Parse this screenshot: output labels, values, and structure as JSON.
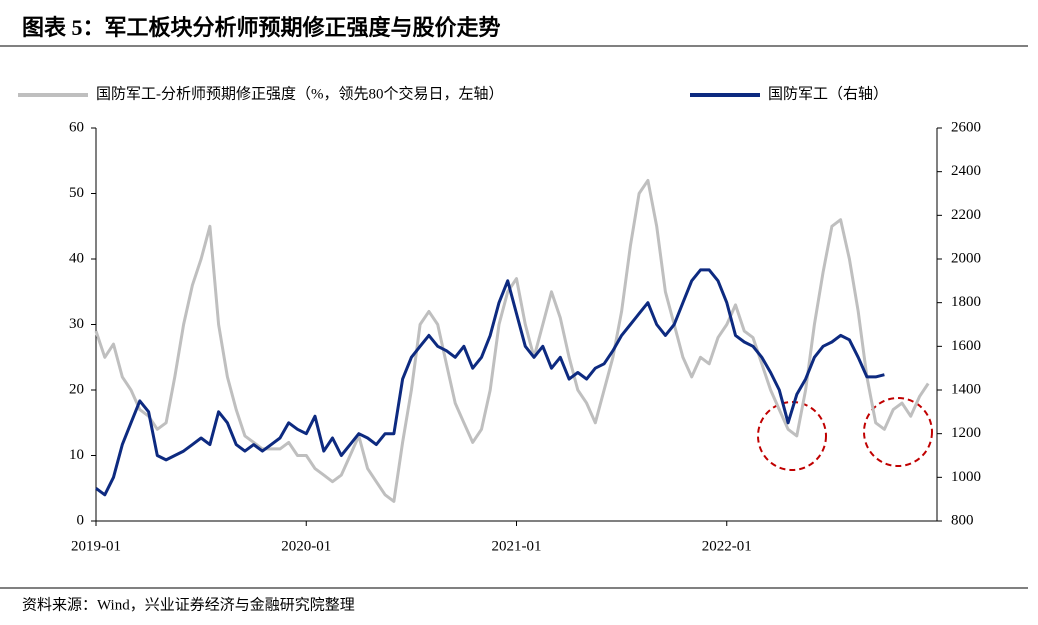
{
  "title": "图表 5：军工板块分析师预期修正强度与股价走势",
  "source": "资料来源：Wind，兴业证券经济与金融研究院整理",
  "chart_data": {
    "type": "line",
    "categories": [
      "2019-01",
      null,
      null,
      null,
      null,
      null,
      null,
      null,
      null,
      null,
      null,
      null,
      null,
      null,
      null,
      null,
      null,
      null,
      null,
      null,
      null,
      null,
      null,
      null,
      "2020-01",
      null,
      null,
      null,
      null,
      null,
      null,
      null,
      null,
      null,
      null,
      null,
      null,
      null,
      null,
      null,
      null,
      null,
      null,
      null,
      null,
      null,
      null,
      null,
      "2021-01",
      null,
      null,
      null,
      null,
      null,
      null,
      null,
      null,
      null,
      null,
      null,
      null,
      null,
      null,
      null,
      null,
      null,
      null,
      null,
      null,
      null,
      null,
      null,
      "2022-01",
      null,
      null,
      null,
      null,
      null,
      null,
      null,
      null,
      null,
      null,
      null,
      null,
      null,
      null,
      null,
      null,
      null,
      null,
      null,
      null,
      null,
      null,
      null
    ],
    "series": [
      {
        "name": "国防军工-分析师预期修正强度（%，领先80个交易日，左轴）",
        "color": "#bfbfbf",
        "axis": "y",
        "values": [
          29,
          25,
          27,
          22,
          20,
          17,
          16,
          14,
          15,
          22,
          30,
          36,
          40,
          45,
          30,
          22,
          17,
          13,
          12,
          11,
          11,
          11,
          12,
          10,
          10,
          8,
          7,
          6,
          7,
          10,
          13,
          8,
          6,
          4,
          3,
          12,
          20,
          30,
          32,
          30,
          24,
          18,
          15,
          12,
          14,
          20,
          30,
          35,
          37,
          30,
          25,
          30,
          35,
          31,
          25,
          20,
          18,
          15,
          20,
          25,
          32,
          42,
          50,
          52,
          45,
          35,
          30,
          25,
          22,
          25,
          24,
          28,
          30,
          33,
          29,
          28,
          24,
          20,
          17,
          14,
          13,
          20,
          30,
          38,
          45,
          46,
          40,
          32,
          22,
          15,
          14,
          17,
          18,
          16,
          19,
          21
        ]
      },
      {
        "name": "国防军工（右轴）",
        "color": "#0d2a80",
        "axis": "y2",
        "values": [
          950,
          920,
          1000,
          1150,
          1250,
          1350,
          1300,
          1100,
          1080,
          1100,
          1120,
          1150,
          1180,
          1150,
          1300,
          1250,
          1150,
          1120,
          1150,
          1120,
          1150,
          1180,
          1250,
          1220,
          1200,
          1280,
          1120,
          1180,
          1100,
          1150,
          1200,
          1180,
          1150,
          1200,
          1200,
          1450,
          1550,
          1600,
          1650,
          1600,
          1580,
          1550,
          1600,
          1500,
          1550,
          1650,
          1800,
          1900,
          1750,
          1600,
          1550,
          1600,
          1500,
          1550,
          1450,
          1480,
          1450,
          1500,
          1520,
          1580,
          1650,
          1700,
          1750,
          1800,
          1700,
          1650,
          1700,
          1800,
          1900,
          1950,
          1950,
          1900,
          1800,
          1650,
          1620,
          1600,
          1550,
          1480,
          1400,
          1250,
          1380,
          1450,
          1550,
          1600,
          1620,
          1650,
          1630,
          1550,
          1460,
          1460,
          1470,
          null,
          null,
          null,
          null,
          null
        ]
      }
    ],
    "ylim": [
      0,
      60
    ],
    "yticks": [
      0,
      10,
      20,
      30,
      40,
      50,
      60
    ],
    "y2lim": [
      800,
      2600
    ],
    "y2ticks": [
      800,
      1000,
      1200,
      1400,
      1600,
      1800,
      2000,
      2200,
      2400,
      2600
    ]
  }
}
